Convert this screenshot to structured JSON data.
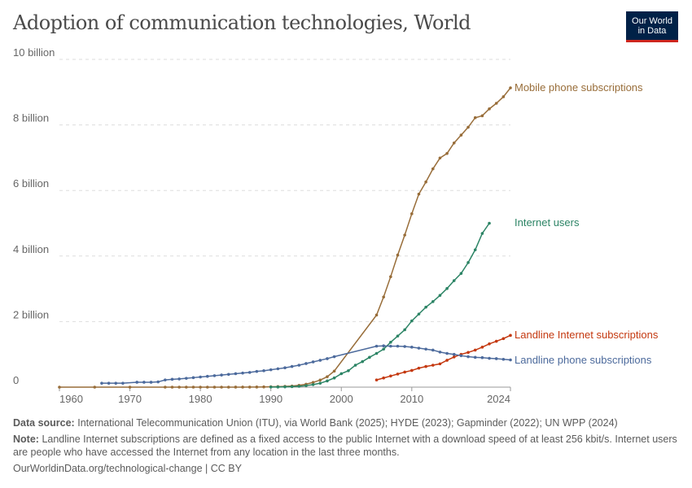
{
  "title": "Adoption of communication technologies, World",
  "logo": {
    "line1": "Our World",
    "line2": "in Data"
  },
  "footer": {
    "source_label": "Data source:",
    "source": "International Telecommunication Union (ITU), via World Bank (2025); HYDE (2023); Gapminder (2022); UN WPP (2024)",
    "note_label": "Note:",
    "note": "Landline Internet subscriptions are defined as a fixed access to the public Internet with a download speed of at least 256 kbit/s. Internet users are people who have accessed the Internet from any location in the last three months.",
    "url": "OurWorldinData.org/technological-change | CC BY"
  },
  "chart_data": {
    "type": "line",
    "title": "Adoption of communication technologies, World",
    "xlim": [
      1960,
      2024
    ],
    "ylim": [
      0,
      10
    ],
    "y_unit": "billion",
    "x_ticks": [
      1960,
      1970,
      1980,
      1990,
      2000,
      2010,
      2024
    ],
    "y_ticks": [
      {
        "v": 0,
        "label": "0"
      },
      {
        "v": 2,
        "label": "2 billion"
      },
      {
        "v": 4,
        "label": "4 billion"
      },
      {
        "v": 6,
        "label": "6 billion"
      },
      {
        "v": 8,
        "label": "8 billion"
      },
      {
        "v": 10,
        "label": "10 billion"
      }
    ],
    "grid": true,
    "legend": "inline-right",
    "series": [
      {
        "name": "Mobile phone subscriptions",
        "color": "#986d39",
        "points": [
          [
            1960,
            0
          ],
          [
            1965,
            0
          ],
          [
            1970,
            0
          ],
          [
            1975,
            0
          ],
          [
            1976,
            0
          ],
          [
            1977,
            0
          ],
          [
            1978,
            0
          ],
          [
            1979,
            0
          ],
          [
            1980,
            0
          ],
          [
            1981,
            0
          ],
          [
            1982,
            0
          ],
          [
            1983,
            0
          ],
          [
            1984,
            0
          ],
          [
            1985,
            0.001
          ],
          [
            1986,
            0.001
          ],
          [
            1987,
            0.002
          ],
          [
            1988,
            0.004
          ],
          [
            1989,
            0.007
          ],
          [
            1990,
            0.011
          ],
          [
            1991,
            0.016
          ],
          [
            1992,
            0.023
          ],
          [
            1993,
            0.034
          ],
          [
            1994,
            0.056
          ],
          [
            1995,
            0.09
          ],
          [
            1996,
            0.145
          ],
          [
            1997,
            0.215
          ],
          [
            1998,
            0.318
          ],
          [
            1999,
            0.49
          ],
          [
            2005,
            2.2
          ],
          [
            2006,
            2.75
          ],
          [
            2007,
            3.37
          ],
          [
            2008,
            4.03
          ],
          [
            2009,
            4.64
          ],
          [
            2010,
            5.29
          ],
          [
            2011,
            5.89
          ],
          [
            2012,
            6.26
          ],
          [
            2013,
            6.66
          ],
          [
            2014,
            6.99
          ],
          [
            2015,
            7.13
          ],
          [
            2016,
            7.45
          ],
          [
            2017,
            7.69
          ],
          [
            2018,
            7.93
          ],
          [
            2019,
            8.22
          ],
          [
            2020,
            8.28
          ],
          [
            2021,
            8.49
          ],
          [
            2022,
            8.66
          ],
          [
            2023,
            8.86
          ],
          [
            2024,
            9.13
          ]
        ]
      },
      {
        "name": "Internet users",
        "color": "#2c8465",
        "points": [
          [
            1990,
            0.003
          ],
          [
            1991,
            0.004
          ],
          [
            1992,
            0.008
          ],
          [
            1993,
            0.014
          ],
          [
            1994,
            0.025
          ],
          [
            1995,
            0.045
          ],
          [
            1996,
            0.077
          ],
          [
            1997,
            0.12
          ],
          [
            1998,
            0.19
          ],
          [
            1999,
            0.28
          ],
          [
            2000,
            0.41
          ],
          [
            2001,
            0.5
          ],
          [
            2002,
            0.67
          ],
          [
            2003,
            0.78
          ],
          [
            2004,
            0.91
          ],
          [
            2005,
            1.03
          ],
          [
            2006,
            1.16
          ],
          [
            2007,
            1.37
          ],
          [
            2008,
            1.56
          ],
          [
            2009,
            1.75
          ],
          [
            2010,
            2.02
          ],
          [
            2011,
            2.23
          ],
          [
            2012,
            2.44
          ],
          [
            2013,
            2.61
          ],
          [
            2014,
            2.8
          ],
          [
            2015,
            3.01
          ],
          [
            2016,
            3.25
          ],
          [
            2017,
            3.47
          ],
          [
            2018,
            3.8
          ],
          [
            2019,
            4.19
          ],
          [
            2020,
            4.69
          ],
          [
            2021,
            5.0
          ]
        ]
      },
      {
        "name": "Landline Internet subscriptions",
        "color": "#c4380f",
        "points": [
          [
            2005,
            0.22
          ],
          [
            2006,
            0.28
          ],
          [
            2007,
            0.34
          ],
          [
            2008,
            0.4
          ],
          [
            2009,
            0.46
          ],
          [
            2010,
            0.51
          ],
          [
            2011,
            0.58
          ],
          [
            2012,
            0.63
          ],
          [
            2013,
            0.67
          ],
          [
            2014,
            0.71
          ],
          [
            2015,
            0.82
          ],
          [
            2016,
            0.92
          ],
          [
            2017,
            1.0
          ],
          [
            2018,
            1.06
          ],
          [
            2019,
            1.13
          ],
          [
            2020,
            1.22
          ],
          [
            2021,
            1.32
          ],
          [
            2022,
            1.4
          ],
          [
            2023,
            1.48
          ],
          [
            2024,
            1.58
          ]
        ]
      },
      {
        "name": "Landline phone subscriptions",
        "color": "#4c6a9c",
        "points": [
          [
            1966,
            0.12
          ],
          [
            1967,
            0.12
          ],
          [
            1968,
            0.12
          ],
          [
            1969,
            0.12
          ],
          [
            1971,
            0.15
          ],
          [
            1972,
            0.15
          ],
          [
            1973,
            0.15
          ],
          [
            1974,
            0.16
          ],
          [
            1975,
            0.22
          ],
          [
            1976,
            0.24
          ],
          [
            1977,
            0.25
          ],
          [
            1978,
            0.27
          ],
          [
            1979,
            0.29
          ],
          [
            1980,
            0.31
          ],
          [
            1981,
            0.33
          ],
          [
            1982,
            0.35
          ],
          [
            1983,
            0.37
          ],
          [
            1984,
            0.39
          ],
          [
            1985,
            0.41
          ],
          [
            1986,
            0.43
          ],
          [
            1987,
            0.45
          ],
          [
            1988,
            0.48
          ],
          [
            1989,
            0.5
          ],
          [
            1990,
            0.53
          ],
          [
            1991,
            0.56
          ],
          [
            1992,
            0.59
          ],
          [
            1993,
            0.63
          ],
          [
            1994,
            0.67
          ],
          [
            1995,
            0.72
          ],
          [
            1996,
            0.77
          ],
          [
            1997,
            0.82
          ],
          [
            1998,
            0.87
          ],
          [
            1999,
            0.93
          ],
          [
            2005,
            1.25
          ],
          [
            2006,
            1.26
          ],
          [
            2007,
            1.25
          ],
          [
            2008,
            1.25
          ],
          [
            2009,
            1.24
          ],
          [
            2010,
            1.22
          ],
          [
            2011,
            1.19
          ],
          [
            2012,
            1.16
          ],
          [
            2013,
            1.13
          ],
          [
            2014,
            1.07
          ],
          [
            2015,
            1.03
          ],
          [
            2016,
            1.0
          ],
          [
            2017,
            0.96
          ],
          [
            2018,
            0.93
          ],
          [
            2019,
            0.91
          ],
          [
            2020,
            0.9
          ],
          [
            2021,
            0.88
          ],
          [
            2022,
            0.87
          ],
          [
            2023,
            0.85
          ],
          [
            2024,
            0.83
          ]
        ]
      }
    ],
    "label_offsets_note": ""
  }
}
